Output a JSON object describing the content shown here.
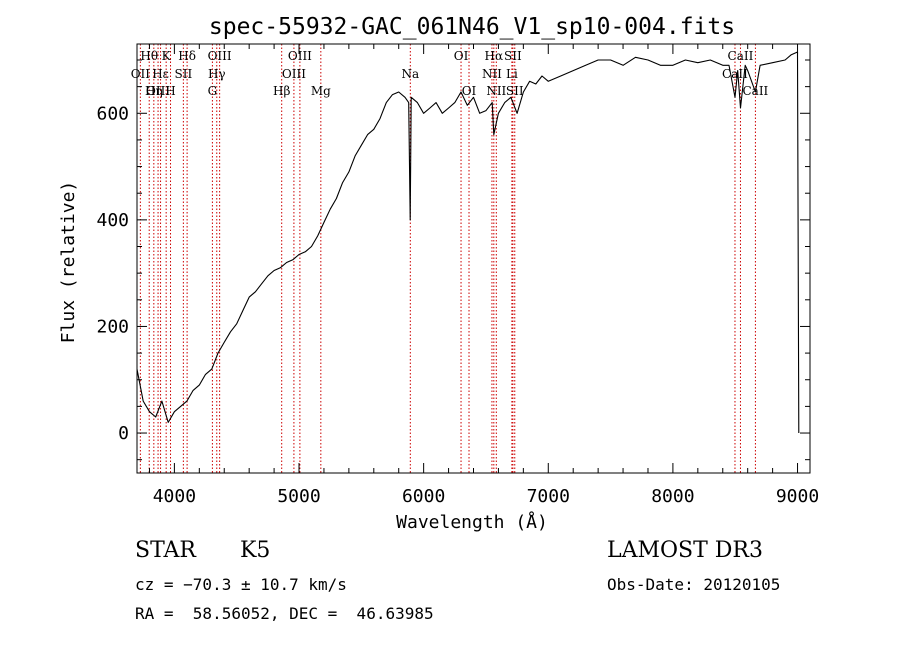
{
  "chart_data": {
    "type": "line",
    "title": "spec-55932-GAC_061N46_V1_sp10-004.fits",
    "xlabel": "Wavelength (Å)",
    "ylabel": "Flux (relative)",
    "xlim": [
      3700,
      9100
    ],
    "ylim": [
      -75,
      730
    ],
    "xticks": [
      4000,
      5000,
      6000,
      7000,
      8000,
      9000
    ],
    "yticks": [
      0,
      200,
      400,
      600
    ],
    "grid": false,
    "series": [
      {
        "name": "flux",
        "x": [
          3700,
          3750,
          3800,
          3850,
          3900,
          3950,
          4000,
          4050,
          4100,
          4150,
          4200,
          4250,
          4300,
          4350,
          4400,
          4450,
          4500,
          4550,
          4600,
          4650,
          4700,
          4750,
          4800,
          4850,
          4900,
          4950,
          5000,
          5050,
          5100,
          5150,
          5200,
          5250,
          5300,
          5350,
          5400,
          5450,
          5500,
          5550,
          5600,
          5650,
          5700,
          5750,
          5800,
          5850,
          5880,
          5892,
          5900,
          5950,
          6000,
          6050,
          6100,
          6150,
          6200,
          6250,
          6300,
          6350,
          6400,
          6450,
          6500,
          6550,
          6563,
          6600,
          6650,
          6700,
          6750,
          6800,
          6850,
          6900,
          6950,
          7000,
          7100,
          7200,
          7300,
          7400,
          7500,
          7600,
          7700,
          7800,
          7900,
          8000,
          8100,
          8200,
          8300,
          8400,
          8450,
          8498,
          8520,
          8542,
          8580,
          8600,
          8662,
          8700,
          8800,
          8900,
          8950,
          9000,
          9010
        ],
        "values": [
          120,
          60,
          40,
          30,
          60,
          20,
          40,
          50,
          60,
          80,
          90,
          110,
          120,
          150,
          170,
          190,
          205,
          230,
          255,
          265,
          280,
          295,
          305,
          310,
          320,
          325,
          335,
          340,
          350,
          370,
          395,
          420,
          440,
          470,
          490,
          520,
          540,
          560,
          570,
          590,
          620,
          635,
          640,
          630,
          620,
          400,
          630,
          620,
          600,
          610,
          620,
          600,
          610,
          620,
          640,
          615,
          630,
          600,
          605,
          620,
          560,
          600,
          620,
          630,
          600,
          640,
          660,
          655,
          670,
          660,
          670,
          680,
          690,
          700,
          700,
          690,
          705,
          700,
          690,
          690,
          700,
          695,
          700,
          690,
          690,
          630,
          680,
          610,
          690,
          680,
          640,
          690,
          695,
          700,
          710,
          715,
          0
        ]
      }
    ],
    "spectral_lines": [
      {
        "name": "Hθ",
        "wavelength": 3798,
        "row": 1
      },
      {
        "name": "K",
        "wavelength": 3934,
        "row": 1
      },
      {
        "name": "Hδ",
        "wavelength": 4102,
        "row": 1
      },
      {
        "name": "OIII",
        "wavelength": 4363,
        "row": 1
      },
      {
        "name": "OIII",
        "wavelength": 5007,
        "row": 1
      },
      {
        "name": "OI",
        "wavelength": 6300,
        "row": 1
      },
      {
        "name": "Hα",
        "wavelength": 6563,
        "row": 1
      },
      {
        "name": "SII",
        "wavelength": 6716,
        "row": 1
      },
      {
        "name": "CaII",
        "wavelength": 8542,
        "row": 1
      },
      {
        "name": "OII",
        "wavelength": 3727,
        "row": 2
      },
      {
        "name": "Hε",
        "wavelength": 3889,
        "row": 2
      },
      {
        "name": "SII",
        "wavelength": 4072,
        "row": 2
      },
      {
        "name": "Hγ",
        "wavelength": 4340,
        "row": 2
      },
      {
        "name": "OIII",
        "wavelength": 4959,
        "row": 2
      },
      {
        "name": "Na",
        "wavelength": 5893,
        "row": 2
      },
      {
        "name": "NII",
        "wavelength": 6548,
        "row": 2
      },
      {
        "name": "Li",
        "wavelength": 6708,
        "row": 2
      },
      {
        "name": "CaII",
        "wavelength": 8498,
        "row": 2
      },
      {
        "name": "OIII",
        "wavelength": 3869,
        "row": 3
      },
      {
        "name": "Hη",
        "wavelength": 3835,
        "row": 3
      },
      {
        "name": "H",
        "wavelength": 3969,
        "row": 3
      },
      {
        "name": "G",
        "wavelength": 4305,
        "row": 3
      },
      {
        "name": "Hβ",
        "wavelength": 4861,
        "row": 3
      },
      {
        "name": "Mg",
        "wavelength": 5175,
        "row": 3
      },
      {
        "name": "OI",
        "wavelength": 6364,
        "row": 3
      },
      {
        "name": "NII",
        "wavelength": 6583,
        "row": 3
      },
      {
        "name": "SII",
        "wavelength": 6731,
        "row": 3
      },
      {
        "name": "CaII",
        "wavelength": 8662,
        "row": 3
      }
    ]
  },
  "info": {
    "class": "STAR",
    "subclass": "K5",
    "survey": "LAMOST DR3",
    "cz": "cz = −70.3 ± 10.7 km/s",
    "obs_date": "Obs-Date: 20120105",
    "coords": "RA =  58.56052, DEC =  46.63985"
  },
  "colors": {
    "line_marker": "#cc0000",
    "spectrum": "#000000"
  }
}
